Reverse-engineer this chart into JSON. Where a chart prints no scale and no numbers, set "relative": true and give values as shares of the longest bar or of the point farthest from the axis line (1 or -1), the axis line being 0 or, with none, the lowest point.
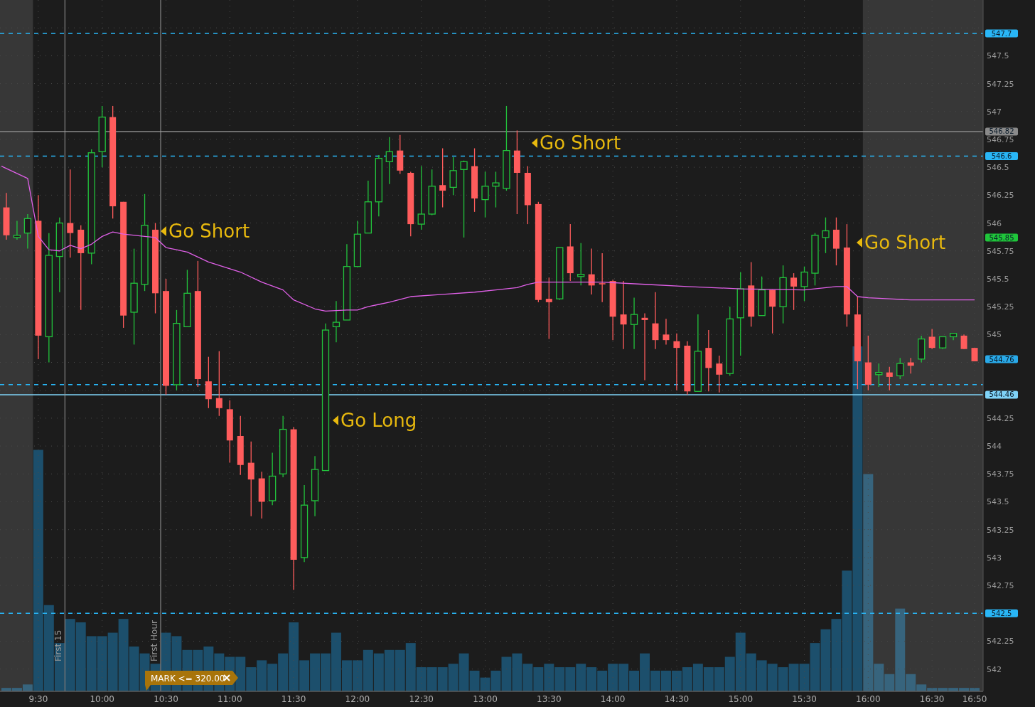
{
  "chart_data": [
    {
      "type": "candlestick",
      "x": [
        9.25,
        9.3333,
        9.4167,
        9.5,
        9.5833,
        9.6667,
        9.75,
        9.8333,
        9.9167,
        10,
        10.0833,
        10.1667,
        10.25,
        10.3333,
        10.4167,
        10.5,
        10.5833,
        10.6667,
        10.75,
        10.8333,
        10.9167,
        11,
        11.0833,
        11.1667,
        11.25,
        11.3333,
        11.4167,
        11.5,
        11.5833,
        11.6667,
        11.75,
        11.8333,
        11.9167,
        12,
        12.0833,
        12.1667,
        12.25,
        12.3333,
        12.4167,
        12.5,
        12.5833,
        12.6667,
        12.75,
        12.8333,
        12.9167,
        13,
        13.0833,
        13.1667,
        13.25,
        13.3333,
        13.4167,
        13.5,
        13.5833,
        13.6667,
        13.75,
        13.8333,
        13.9167,
        14,
        14.0833,
        14.1667,
        14.25,
        14.3333,
        14.4167,
        14.5,
        14.5833,
        14.6667,
        14.75,
        14.8333,
        14.9167,
        15,
        15.0833,
        15.1667,
        15.25,
        15.3333,
        15.4167,
        15.5,
        15.5833,
        15.6667,
        15.75,
        15.8333,
        15.9167,
        16,
        16.0833,
        16.1667,
        16.25,
        16.3333,
        16.4167,
        16.5,
        16.5833,
        16.6667,
        16.75,
        16.8333
      ],
      "ohlc": [
        [
          546.14,
          546.27,
          545.85,
          545.89
        ],
        [
          545.87,
          546.02,
          545.85,
          545.89
        ],
        [
          545.91,
          546.08,
          545.77,
          546.04
        ],
        [
          546.02,
          546.25,
          544.78,
          544.99
        ],
        [
          544.98,
          545.91,
          544.75,
          545.71
        ],
        [
          545.7,
          546.05,
          545.38,
          546.0
        ],
        [
          546.0,
          546.48,
          545.69,
          545.91
        ],
        [
          545.94,
          545.98,
          545.22,
          545.73
        ],
        [
          545.73,
          546.66,
          545.63,
          546.63
        ],
        [
          546.64,
          547.05,
          546.5,
          546.95
        ],
        [
          546.95,
          547.05,
          546.04,
          546.15
        ],
        [
          546.19,
          546.19,
          545.06,
          545.17
        ],
        [
          545.2,
          545.77,
          544.91,
          545.46
        ],
        [
          545.45,
          546.26,
          545.39,
          545.98
        ],
        [
          545.94,
          546.0,
          545.19,
          545.37
        ],
        [
          545.39,
          545.5,
          544.46,
          544.54
        ],
        [
          544.55,
          545.22,
          544.5,
          545.1
        ],
        [
          545.07,
          545.58,
          545.07,
          545.37
        ],
        [
          545.39,
          545.66,
          544.53,
          544.6
        ],
        [
          544.58,
          544.8,
          544.34,
          544.42
        ],
        [
          544.43,
          544.85,
          544.27,
          544.34
        ],
        [
          544.33,
          544.41,
          543.85,
          544.05
        ],
        [
          544.09,
          544.27,
          543.74,
          543.83
        ],
        [
          543.85,
          544.04,
          543.37,
          543.7
        ],
        [
          543.71,
          543.77,
          543.35,
          543.5
        ],
        [
          543.51,
          543.94,
          543.47,
          543.73
        ],
        [
          543.75,
          544.27,
          543.72,
          544.15
        ],
        [
          544.15,
          544.17,
          542.71,
          542.98
        ],
        [
          543.0,
          543.65,
          542.96,
          543.47
        ],
        [
          543.51,
          543.91,
          543.37,
          543.79
        ],
        [
          543.78,
          545.1,
          543.78,
          545.04
        ],
        [
          545.07,
          545.3,
          544.93,
          545.11
        ],
        [
          545.13,
          545.81,
          545.13,
          545.61
        ],
        [
          545.61,
          546.02,
          545.61,
          545.9
        ],
        [
          545.91,
          546.38,
          545.91,
          546.19
        ],
        [
          546.19,
          546.61,
          546.06,
          546.58
        ],
        [
          546.55,
          546.77,
          546.35,
          546.64
        ],
        [
          546.65,
          546.79,
          546.44,
          546.47
        ],
        [
          546.45,
          546.46,
          545.88,
          545.99
        ],
        [
          545.99,
          546.51,
          545.94,
          546.08
        ],
        [
          546.08,
          546.48,
          546.07,
          546.33
        ],
        [
          546.34,
          546.67,
          546.14,
          546.29
        ],
        [
          546.32,
          546.59,
          546.25,
          546.47
        ],
        [
          546.48,
          546.56,
          545.87,
          546.55
        ],
        [
          546.51,
          546.67,
          546.1,
          546.22
        ],
        [
          546.21,
          546.46,
          546.05,
          546.33
        ],
        [
          546.33,
          546.46,
          546.14,
          546.36
        ],
        [
          546.31,
          547.05,
          546.29,
          546.65
        ],
        [
          546.65,
          546.83,
          546.08,
          546.45
        ],
        [
          546.45,
          546.51,
          545.99,
          546.16
        ],
        [
          546.17,
          546.19,
          545.29,
          545.31
        ],
        [
          545.32,
          545.51,
          544.96,
          545.29
        ],
        [
          545.32,
          545.78,
          545.31,
          545.78
        ],
        [
          545.79,
          545.99,
          545.48,
          545.55
        ],
        [
          545.52,
          545.82,
          545.44,
          545.54
        ],
        [
          545.54,
          545.77,
          545.36,
          545.44
        ],
        [
          545.46,
          545.73,
          545.29,
          545.45
        ],
        [
          545.48,
          545.49,
          544.95,
          545.16
        ],
        [
          545.18,
          545.48,
          544.87,
          545.09
        ],
        [
          545.09,
          545.33,
          544.87,
          545.18
        ],
        [
          545.15,
          545.19,
          544.59,
          545.13
        ],
        [
          545.1,
          545.38,
          544.87,
          544.95
        ],
        [
          545.0,
          545.14,
          544.91,
          544.95
        ],
        [
          544.94,
          545.01,
          544.5,
          544.88
        ],
        [
          544.9,
          544.94,
          544.46,
          544.49
        ],
        [
          544.49,
          545.18,
          544.49,
          544.85
        ],
        [
          544.88,
          545.04,
          544.49,
          544.7
        ],
        [
          544.74,
          544.81,
          544.48,
          544.64
        ],
        [
          544.65,
          545.25,
          544.63,
          545.14
        ],
        [
          545.15,
          545.56,
          544.81,
          545.41
        ],
        [
          545.44,
          545.65,
          545.07,
          545.16
        ],
        [
          545.17,
          545.52,
          545.17,
          545.4
        ],
        [
          545.4,
          545.4,
          545.01,
          545.25
        ],
        [
          545.25,
          545.62,
          545.1,
          545.51
        ],
        [
          545.51,
          545.55,
          545.22,
          545.43
        ],
        [
          545.43,
          545.61,
          545.3,
          545.56
        ],
        [
          545.55,
          545.91,
          545.44,
          545.89
        ],
        [
          545.87,
          546.05,
          545.73,
          545.93
        ],
        [
          545.94,
          546.05,
          545.62,
          545.77
        ],
        [
          545.78,
          545.99,
          545.07,
          545.18
        ],
        [
          545.18,
          545.34,
          544.51,
          544.76
        ],
        [
          544.75,
          544.99,
          544.5,
          544.55
        ],
        [
          544.64,
          544.74,
          544.53,
          544.66
        ],
        [
          544.66,
          544.71,
          544.5,
          544.62
        ],
        [
          544.63,
          544.79,
          544.6,
          544.74
        ],
        [
          544.75,
          544.79,
          544.65,
          544.72
        ],
        [
          544.78,
          544.99,
          544.75,
          544.96
        ],
        [
          544.98,
          545.05,
          544.87,
          544.88
        ],
        [
          544.88,
          544.98,
          544.87,
          544.98
        ],
        [
          544.98,
          545.01,
          544.95,
          545.01
        ],
        [
          544.99,
          545.0,
          544.87,
          544.87
        ],
        [
          544.88,
          544.88,
          544.76,
          544.76
        ]
      ],
      "series": [
        {
          "type": "line",
          "color": "#e060e8",
          "x": [
            9.2111,
            9.4167,
            9.5,
            9.5833,
            9.6667,
            9.75,
            9.8333,
            9.9167,
            10,
            10.0833,
            10.1667,
            10.3333,
            10.4167,
            10.5,
            10.5833,
            10.6667,
            10.8333,
            11,
            11.0833,
            11.25,
            11.4167,
            11.5,
            11.6667,
            11.75,
            11.9167,
            12,
            12.0833,
            12.1667,
            12.25,
            12.4167,
            12.6667,
            12.9167,
            13.0833,
            13.25,
            13.3333,
            13.4167,
            13.9167,
            14.25,
            14.5833,
            15,
            15.5,
            15.75,
            15.8333,
            15.9167,
            16,
            16.1667,
            16.3333,
            16.8333
          ],
          "values": [
            546.51,
            546.4,
            545.88,
            545.76,
            545.75,
            545.8,
            545.77,
            545.81,
            545.88,
            545.92,
            545.9,
            545.88,
            545.87,
            545.78,
            545.76,
            545.74,
            545.65,
            545.59,
            545.56,
            545.47,
            545.4,
            545.31,
            545.23,
            545.21,
            545.22,
            545.22,
            545.25,
            545.27,
            545.29,
            545.34,
            545.36,
            545.38,
            545.4,
            545.42,
            545.45,
            545.47,
            545.47,
            545.45,
            545.43,
            545.41,
            545.4,
            545.43,
            545.43,
            545.34,
            545.33,
            545.32,
            545.31,
            545.31
          ]
        }
      ],
      "xlim": [
        9.2,
        16.9
      ],
      "xticks": [
        {
          "value": 9.5,
          "label": "9:30"
        },
        {
          "value": 10,
          "label": "10:00"
        },
        {
          "value": 10.5,
          "label": "10:30"
        },
        {
          "value": 11,
          "label": "11:00"
        },
        {
          "value": 11.5,
          "label": "11:30"
        },
        {
          "value": 12,
          "label": "12:00"
        },
        {
          "value": 12.5,
          "label": "12:30"
        },
        {
          "value": 13,
          "label": "13:00"
        },
        {
          "value": 13.5,
          "label": "13:30"
        },
        {
          "value": 14,
          "label": "14:00"
        },
        {
          "value": 14.5,
          "label": "14:30"
        },
        {
          "value": 15,
          "label": "15:00"
        },
        {
          "value": 15.5,
          "label": "15:30"
        },
        {
          "value": 16,
          "label": "16:00"
        },
        {
          "value": 16.5,
          "label": "16:30"
        },
        {
          "value": 16.8333,
          "label": "16:50"
        }
      ],
      "ylim": [
        541.8,
        548
      ],
      "yticks": [
        542,
        542.25,
        {
          "value": 542.5,
          "label": null
        },
        542.75,
        543,
        543.25,
        543.5,
        543.75,
        544,
        544.25,
        {
          "value": 544.5,
          "label": null
        },
        {
          "value": 544.75,
          "label": null
        },
        545,
        545.25,
        545.5,
        545.75,
        546,
        546.25,
        546.5,
        546.75,
        547,
        547.25,
        547.5,
        {
          "value": 547.75,
          "label": null
        }
      ],
      "grid": true,
      "bands": [
        {
          "axis": "x",
          "from": 9.2,
          "to": 9.4583,
          "color": "#ffffff"
        },
        {
          "axis": "x",
          "from": 15.9583,
          "to": 16.9,
          "color": "#ffffff"
        }
      ],
      "ref_lines": [
        {
          "axis": "y",
          "value": 547.7,
          "label": "547.7",
          "color": "#29b6f6",
          "line_style": "dashed"
        },
        {
          "axis": "y",
          "value": 546.82,
          "label": "546.82",
          "color": "#8a8a8a",
          "line_style": "solid"
        },
        {
          "axis": "y",
          "value": 546.6,
          "label": "546.6",
          "color": "#29b6f6",
          "line_style": "dashed"
        },
        {
          "axis": "y",
          "value": 544.55,
          "color": "#29b6f6",
          "line_style": "dashed"
        },
        {
          "axis": "y",
          "value": 544.46,
          "label": "544.46",
          "color": "#7fd3f7",
          "line_style": "solid"
        },
        {
          "axis": "y",
          "value": 542.5,
          "label": "542.5",
          "color": "#29b6f6",
          "line_style": "dashed"
        },
        {
          "axis": "x",
          "value": 9.7083,
          "label": "First 15",
          "color": "#9a9a9a",
          "line_style": "solid"
        },
        {
          "axis": "x",
          "value": 10.4583,
          "label": "First Hour",
          "color": "#9a9a9a",
          "line_style": "solid"
        }
      ],
      "annotations": [
        "Go Short",
        "Go Long",
        "Go Short",
        "Go Short",
        "545.85",
        "544.76",
        "MARK <= 320.00"
      ]
    },
    {
      "type": "bar",
      "relative": true,
      "color": "#1c4f6c",
      "xlim": [
        9.2,
        16.9
      ],
      "x": [
        9.25,
        9.3333,
        9.4167,
        9.5,
        9.5833,
        9.6667,
        9.75,
        9.8333,
        9.9167,
        10,
        10.0833,
        10.1667,
        10.25,
        10.3333,
        10.4167,
        10.5,
        10.5833,
        10.6667,
        10.75,
        10.8333,
        10.9167,
        11,
        11.0833,
        11.1667,
        11.25,
        11.3333,
        11.4167,
        11.5,
        11.5833,
        11.6667,
        11.75,
        11.8333,
        11.9167,
        12,
        12.0833,
        12.1667,
        12.25,
        12.3333,
        12.4167,
        12.5,
        12.5833,
        12.6667,
        12.75,
        12.8333,
        12.9167,
        13,
        13.0833,
        13.1667,
        13.25,
        13.3333,
        13.4167,
        13.5,
        13.5833,
        13.6667,
        13.75,
        13.8333,
        13.9167,
        14,
        14.0833,
        14.1667,
        14.25,
        14.3333,
        14.4167,
        14.5,
        14.5833,
        14.6667,
        14.75,
        14.8333,
        14.9167,
        15,
        15.0833,
        15.1667,
        15.25,
        15.3333,
        15.4167,
        15.5,
        15.5833,
        15.6667,
        15.75,
        15.8333,
        15.9167,
        16,
        16.0833,
        16.1667,
        16.25,
        16.3333,
        16.4167,
        16.5,
        16.5833,
        16.6667,
        16.75,
        16.8333
      ],
      "values": [
        0.01,
        0.01,
        0.02,
        0.7,
        0.25,
        0.14,
        0.21,
        0.2,
        0.16,
        0.16,
        0.17,
        0.21,
        0.13,
        0.11,
        0.08,
        0.17,
        0.16,
        0.12,
        0.12,
        0.13,
        0.11,
        0.1,
        0.1,
        0.07,
        0.09,
        0.08,
        0.11,
        0.2,
        0.09,
        0.11,
        0.11,
        0.17,
        0.09,
        0.09,
        0.12,
        0.11,
        0.12,
        0.12,
        0.14,
        0.07,
        0.07,
        0.07,
        0.08,
        0.11,
        0.06,
        0.04,
        0.06,
        0.1,
        0.11,
        0.08,
        0.07,
        0.08,
        0.07,
        0.07,
        0.08,
        0.07,
        0.06,
        0.08,
        0.08,
        0.06,
        0.11,
        0.06,
        0.06,
        0.06,
        0.07,
        0.08,
        0.07,
        0.07,
        0.1,
        0.17,
        0.11,
        0.09,
        0.08,
        0.07,
        0.08,
        0.08,
        0.14,
        0.18,
        0.21,
        0.35,
        1,
        0.63,
        0.08,
        0.05,
        0.24,
        0.05,
        0.02,
        0.01,
        0.01,
        0.01,
        0.01,
        0.01
      ]
    }
  ]
}
